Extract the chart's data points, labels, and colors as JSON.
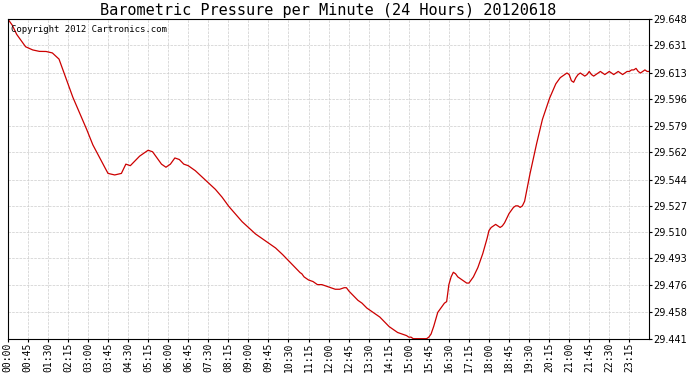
{
  "title": "Barometric Pressure per Minute (24 Hours) 20120618",
  "copyright": "Copyright 2012 Cartronics.com",
  "line_color": "#cc0000",
  "background_color": "#ffffff",
  "grid_color": "#cccccc",
  "yticks": [
    29.441,
    29.458,
    29.476,
    29.493,
    29.51,
    29.527,
    29.544,
    29.562,
    29.579,
    29.596,
    29.613,
    29.631,
    29.648
  ],
  "ylim": [
    29.441,
    29.648
  ],
  "xtick_labels": [
    "00:00",
    "00:45",
    "01:30",
    "02:15",
    "03:00",
    "03:45",
    "04:30",
    "05:15",
    "06:00",
    "06:45",
    "07:30",
    "08:15",
    "09:00",
    "09:45",
    "10:30",
    "11:15",
    "12:00",
    "12:45",
    "13:30",
    "14:15",
    "15:00",
    "15:45",
    "16:30",
    "17:15",
    "18:00",
    "18:45",
    "19:30",
    "20:15",
    "21:00",
    "21:45",
    "22:30",
    "23:15"
  ],
  "title_fontsize": 11,
  "tick_fontsize": 7,
  "copyright_fontsize": 6.5,
  "control_points": [
    [
      0,
      29.648
    ],
    [
      10,
      29.644
    ],
    [
      20,
      29.638
    ],
    [
      40,
      29.63
    ],
    [
      55,
      29.628
    ],
    [
      70,
      29.627
    ],
    [
      85,
      29.627
    ],
    [
      100,
      29.626
    ],
    [
      115,
      29.622
    ],
    [
      130,
      29.61
    ],
    [
      145,
      29.598
    ],
    [
      160,
      29.588
    ],
    [
      175,
      29.578
    ],
    [
      190,
      29.567
    ],
    [
      210,
      29.556
    ],
    [
      225,
      29.548
    ],
    [
      240,
      29.547
    ],
    [
      255,
      29.548
    ],
    [
      265,
      29.554
    ],
    [
      275,
      29.553
    ],
    [
      285,
      29.556
    ],
    [
      295,
      29.559
    ],
    [
      305,
      29.561
    ],
    [
      315,
      29.563
    ],
    [
      325,
      29.562
    ],
    [
      335,
      29.558
    ],
    [
      345,
      29.554
    ],
    [
      355,
      29.552
    ],
    [
      365,
      29.554
    ],
    [
      375,
      29.558
    ],
    [
      385,
      29.557
    ],
    [
      395,
      29.554
    ],
    [
      405,
      29.553
    ],
    [
      420,
      29.55
    ],
    [
      435,
      29.546
    ],
    [
      450,
      29.542
    ],
    [
      465,
      29.538
    ],
    [
      480,
      29.533
    ],
    [
      495,
      29.527
    ],
    [
      510,
      29.522
    ],
    [
      525,
      29.517
    ],
    [
      540,
      29.513
    ],
    [
      555,
      29.509
    ],
    [
      570,
      29.506
    ],
    [
      585,
      29.503
    ],
    [
      600,
      29.5
    ],
    [
      615,
      29.496
    ],
    [
      625,
      29.493
    ],
    [
      635,
      29.49
    ],
    [
      645,
      29.487
    ],
    [
      655,
      29.484
    ],
    [
      660,
      29.483
    ],
    [
      665,
      29.481
    ],
    [
      670,
      29.48
    ],
    [
      675,
      29.479
    ],
    [
      685,
      29.478
    ],
    [
      690,
      29.477
    ],
    [
      695,
      29.476
    ],
    [
      705,
      29.476
    ],
    [
      715,
      29.475
    ],
    [
      725,
      29.474
    ],
    [
      735,
      29.473
    ],
    [
      745,
      29.473
    ],
    [
      755,
      29.474
    ],
    [
      760,
      29.474
    ],
    [
      765,
      29.472
    ],
    [
      775,
      29.469
    ],
    [
      785,
      29.466
    ],
    [
      795,
      29.464
    ],
    [
      805,
      29.461
    ],
    [
      815,
      29.459
    ],
    [
      825,
      29.457
    ],
    [
      835,
      29.455
    ],
    [
      845,
      29.452
    ],
    [
      855,
      29.449
    ],
    [
      865,
      29.447
    ],
    [
      875,
      29.445
    ],
    [
      885,
      29.444
    ],
    [
      895,
      29.443
    ],
    [
      900,
      29.442
    ],
    [
      905,
      29.442
    ],
    [
      910,
      29.441
    ],
    [
      915,
      29.441
    ],
    [
      920,
      29.441
    ],
    [
      925,
      29.441
    ],
    [
      930,
      29.441
    ],
    [
      935,
      29.441
    ],
    [
      940,
      29.441
    ],
    [
      945,
      29.442
    ],
    [
      950,
      29.444
    ],
    [
      955,
      29.448
    ],
    [
      960,
      29.453
    ],
    [
      965,
      29.458
    ],
    [
      970,
      29.46
    ],
    [
      975,
      29.462
    ],
    [
      980,
      29.464
    ],
    [
      985,
      29.465
    ],
    [
      990,
      29.476
    ],
    [
      995,
      29.481
    ],
    [
      1000,
      29.484
    ],
    [
      1005,
      29.483
    ],
    [
      1010,
      29.481
    ],
    [
      1015,
      29.48
    ],
    [
      1020,
      29.479
    ],
    [
      1025,
      29.478
    ],
    [
      1030,
      29.477
    ],
    [
      1035,
      29.477
    ],
    [
      1040,
      29.479
    ],
    [
      1045,
      29.481
    ],
    [
      1050,
      29.484
    ],
    [
      1055,
      29.487
    ],
    [
      1060,
      29.491
    ],
    [
      1065,
      29.495
    ],
    [
      1070,
      29.5
    ],
    [
      1075,
      29.505
    ],
    [
      1080,
      29.511
    ],
    [
      1085,
      29.513
    ],
    [
      1090,
      29.514
    ],
    [
      1095,
      29.515
    ],
    [
      1100,
      29.514
    ],
    [
      1105,
      29.513
    ],
    [
      1110,
      29.514
    ],
    [
      1115,
      29.516
    ],
    [
      1120,
      29.519
    ],
    [
      1125,
      29.522
    ],
    [
      1130,
      29.524
    ],
    [
      1135,
      29.526
    ],
    [
      1140,
      29.527
    ],
    [
      1145,
      29.527
    ],
    [
      1150,
      29.526
    ],
    [
      1155,
      29.527
    ],
    [
      1160,
      29.53
    ],
    [
      1170,
      29.545
    ],
    [
      1185,
      29.565
    ],
    [
      1200,
      29.583
    ],
    [
      1215,
      29.596
    ],
    [
      1230,
      29.606
    ],
    [
      1240,
      29.61
    ],
    [
      1250,
      29.612
    ],
    [
      1255,
      29.613
    ],
    [
      1260,
      29.612
    ],
    [
      1265,
      29.608
    ],
    [
      1270,
      29.607
    ],
    [
      1275,
      29.61
    ],
    [
      1280,
      29.612
    ],
    [
      1285,
      29.613
    ],
    [
      1290,
      29.612
    ],
    [
      1295,
      29.611
    ],
    [
      1300,
      29.612
    ],
    [
      1305,
      29.614
    ],
    [
      1310,
      29.612
    ],
    [
      1315,
      29.611
    ],
    [
      1320,
      29.612
    ],
    [
      1325,
      29.613
    ],
    [
      1330,
      29.614
    ],
    [
      1335,
      29.613
    ],
    [
      1340,
      29.612
    ],
    [
      1345,
      29.613
    ],
    [
      1350,
      29.614
    ],
    [
      1355,
      29.613
    ],
    [
      1360,
      29.612
    ],
    [
      1365,
      29.613
    ],
    [
      1370,
      29.614
    ],
    [
      1375,
      29.613
    ],
    [
      1380,
      29.612
    ],
    [
      1385,
      29.613
    ],
    [
      1390,
      29.614
    ],
    [
      1395,
      29.614
    ],
    [
      1400,
      29.615
    ],
    [
      1405,
      29.615
    ],
    [
      1410,
      29.616
    ],
    [
      1415,
      29.614
    ],
    [
      1420,
      29.613
    ],
    [
      1425,
      29.614
    ],
    [
      1430,
      29.615
    ],
    [
      1435,
      29.614
    ],
    [
      1439,
      29.614
    ]
  ]
}
